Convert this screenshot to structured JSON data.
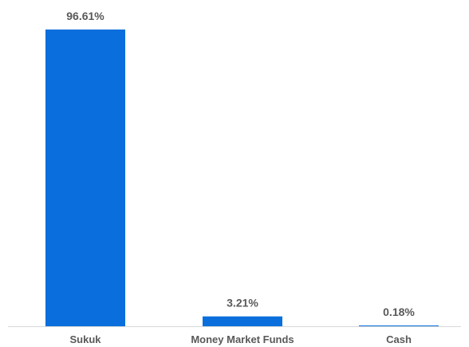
{
  "chart_data": {
    "type": "bar",
    "title": "",
    "xlabel": "",
    "ylabel": "",
    "categories": [
      "Sukuk",
      "Money Market Funds",
      "Cash"
    ],
    "values": [
      96.61,
      3.21,
      0.18
    ],
    "data_labels": [
      "96.61%",
      "3.21%",
      "0.18%"
    ],
    "ylim": [
      0,
      96.61
    ],
    "grid": false,
    "legend": "none",
    "colors": {
      "bar": "#0A6FDC",
      "axis": "#D9D9D9",
      "text": "#595959"
    }
  }
}
